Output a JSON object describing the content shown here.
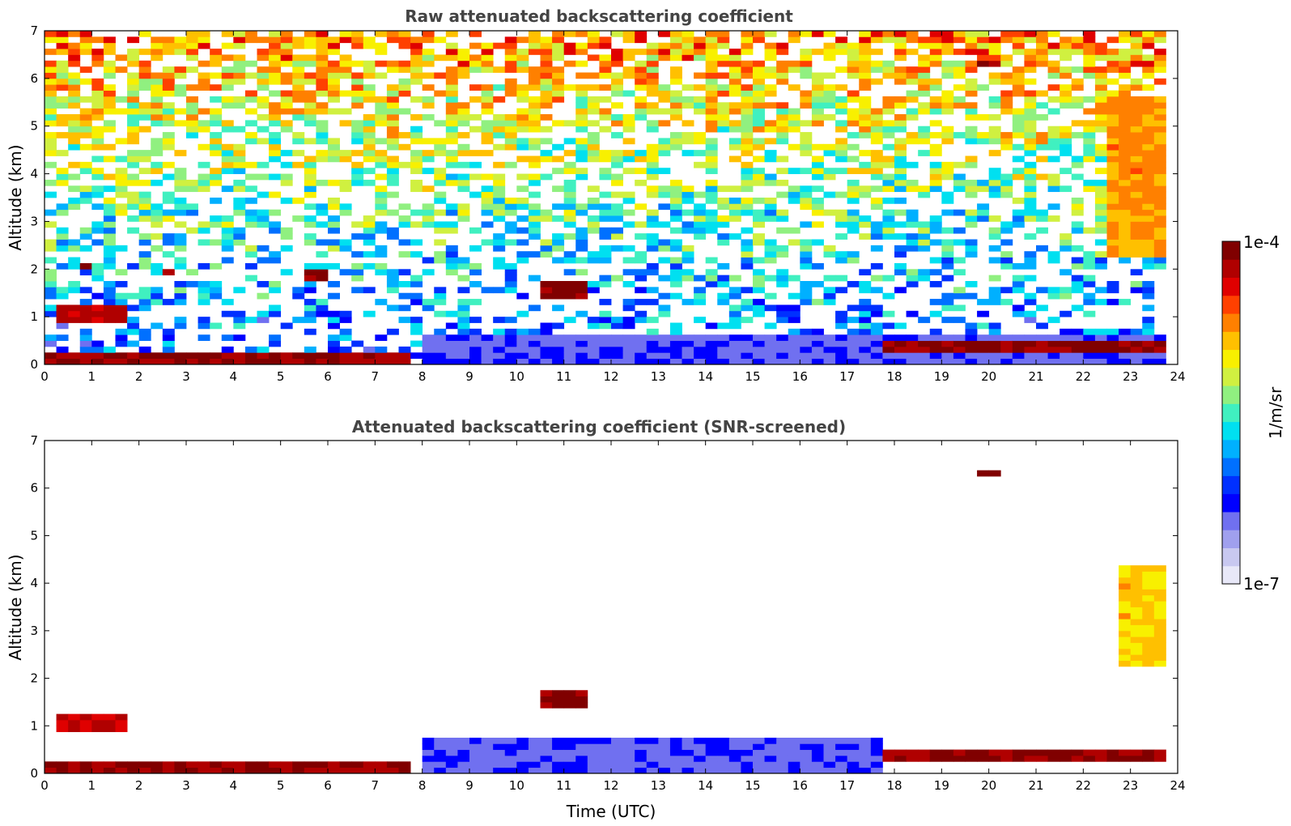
{
  "chart_data": [
    {
      "type": "heatmap",
      "title": "Raw attenuated backscattering coefficient",
      "xlabel": "",
      "ylabel": "Altitude (km)",
      "xlim": [
        0,
        24
      ],
      "ylim": [
        0,
        7
      ],
      "x_ticks": [
        0,
        1,
        2,
        3,
        4,
        5,
        6,
        7,
        8,
        9,
        10,
        11,
        12,
        13,
        14,
        15,
        16,
        17,
        18,
        19,
        20,
        21,
        22,
        23,
        24
      ],
      "y_ticks": [
        0,
        1,
        2,
        3,
        4,
        5,
        6,
        7
      ],
      "grid": false,
      "screened": false,
      "features": [
        {
          "t0": 0.0,
          "t1": 7.8,
          "z0": 0.05,
          "z1": 0.25,
          "level": 0.95
        },
        {
          "t0": 0.3,
          "t1": 1.8,
          "z0": 0.85,
          "z1": 1.2,
          "level": 0.9
        },
        {
          "t0": 0.85,
          "t1": 1.05,
          "z0": 1.95,
          "z1": 2.15,
          "level": 0.95
        },
        {
          "t0": 2.5,
          "t1": 2.8,
          "z0": 1.9,
          "z1": 2.0,
          "level": 0.9
        },
        {
          "t0": 4.4,
          "t1": 4.6,
          "z0": 1.8,
          "z1": 1.95,
          "level": 0.85
        },
        {
          "t0": 5.55,
          "t1": 6.0,
          "z0": 1.75,
          "z1": 1.95,
          "level": 0.95
        },
        {
          "t0": 7.9,
          "t1": 17.8,
          "z0": 0.0,
          "z1": 0.6,
          "level": 0.2
        },
        {
          "t0": 10.5,
          "t1": 11.5,
          "z0": 1.4,
          "z1": 1.7,
          "level": 0.95
        },
        {
          "t0": 17.8,
          "t1": 23.8,
          "z0": 0.2,
          "z1": 0.45,
          "level": 0.95
        },
        {
          "t0": 17.8,
          "t1": 23.8,
          "z0": 0.0,
          "z1": 0.6,
          "level": 0.2
        },
        {
          "t0": 19.8,
          "t1": 20.2,
          "z0": 6.2,
          "z1": 6.4,
          "level": 0.95
        },
        {
          "t0": 22.5,
          "t1": 23.8,
          "z0": 2.2,
          "z1": 5.6,
          "level": 0.75
        }
      ]
    },
    {
      "type": "heatmap",
      "title": "Attenuated backscattering coefficient (SNR-screened)",
      "xlabel": "Time (UTC)",
      "ylabel": "Altitude (km)",
      "xlim": [
        0,
        24
      ],
      "ylim": [
        0,
        7
      ],
      "x_ticks": [
        0,
        1,
        2,
        3,
        4,
        5,
        6,
        7,
        8,
        9,
        10,
        11,
        12,
        13,
        14,
        15,
        16,
        17,
        18,
        19,
        20,
        21,
        22,
        23,
        24
      ],
      "y_ticks": [
        0,
        1,
        2,
        3,
        4,
        5,
        6,
        7
      ],
      "grid": false,
      "screened": true,
      "features": [
        {
          "t0": 0.0,
          "t1": 7.8,
          "z0": 0.05,
          "z1": 0.3,
          "level": 0.95
        },
        {
          "t0": 0.3,
          "t1": 1.8,
          "z0": 0.85,
          "z1": 1.2,
          "level": 0.9
        },
        {
          "t0": 7.9,
          "t1": 17.8,
          "z0": 0.0,
          "z1": 0.8,
          "level": 0.2
        },
        {
          "t0": 10.5,
          "t1": 11.5,
          "z0": 1.4,
          "z1": 1.7,
          "level": 0.95
        },
        {
          "t0": 17.8,
          "t1": 23.8,
          "z0": 0.2,
          "z1": 0.45,
          "level": 0.95
        },
        {
          "t0": 19.8,
          "t1": 20.2,
          "z0": 6.2,
          "z1": 6.4,
          "level": 0.95
        },
        {
          "t0": 22.7,
          "t1": 23.7,
          "z0": 2.3,
          "z1": 4.4,
          "level": 0.7
        }
      ]
    }
  ],
  "colorbar": {
    "label": "1/m/sr",
    "max_label": "1e-4",
    "min_label": "1e-7",
    "colors": [
      "#e8e8f8",
      "#c8c8f0",
      "#a0a0ee",
      "#7070f0",
      "#0000ff",
      "#0030ff",
      "#0070ff",
      "#00b0ff",
      "#00e0f0",
      "#40f0c0",
      "#90f080",
      "#d0f040",
      "#f8f000",
      "#ffc000",
      "#ff8000",
      "#ff4000",
      "#e00000",
      "#b00000",
      "#800000"
    ]
  }
}
